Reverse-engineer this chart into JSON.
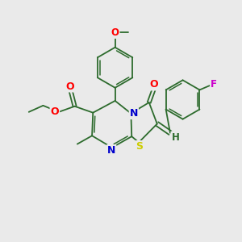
{
  "bg_color": "#eaeaea",
  "bond_color": "#2d6b2d",
  "atom_colors": {
    "O": "#ff0000",
    "N": "#0000cc",
    "S": "#cccc00",
    "F": "#cc00cc",
    "H": "#2d6b2d",
    "C": "#2d6b2d"
  },
  "figsize": [
    3.0,
    3.0
  ],
  "dpi": 100
}
